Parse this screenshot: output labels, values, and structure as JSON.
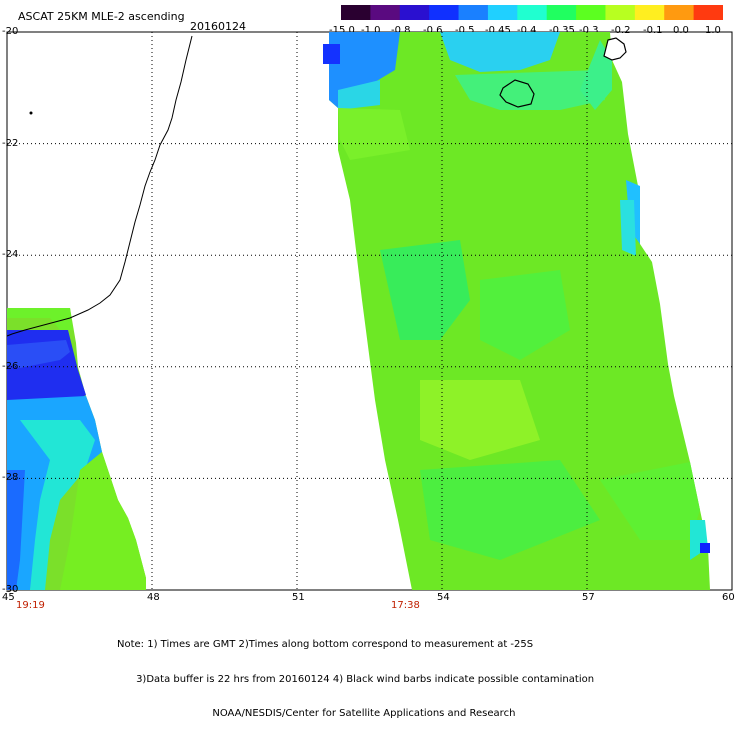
{
  "header": {
    "title": "ASCAT 25KM MLE-2 ascending",
    "date": "20160124"
  },
  "colorbar": {
    "labels": [
      "-15.0",
      "-1.0",
      "-0.8",
      "-0.6",
      "-0.5",
      "-0.45",
      "-0.4",
      "-0.35",
      "-0.3",
      "-0.2",
      "-0.1",
      "0.0",
      "1.0"
    ],
    "colors": [
      "#2a0030",
      "#5a0a80",
      "#2a10d0",
      "#1030ff",
      "#1a80ff",
      "#20d0ff",
      "#20ffd0",
      "#20ff60",
      "#5cff20",
      "#b8ff20",
      "#ffee20",
      "#ff9a10",
      "#ff3a10"
    ]
  },
  "axes": {
    "lat_labels": [
      "-20",
      "-22",
      "-24",
      "-26",
      "-28",
      "-30"
    ],
    "lon_labels": [
      "45",
      "48",
      "51",
      "54",
      "57",
      "60"
    ]
  },
  "times": {
    "left": "19:19",
    "right": "17:38"
  },
  "notes": {
    "line1": "Note: 1) Times are GMT 2)Times along bottom correspond to measurement at -25S",
    "line2": "      3)Data buffer is 22 hrs from 20160124 4) Black wind barbs indicate possible contamination",
    "line3": "                              NOAA/NESDIS/Center for Satellite Applications and Research"
  }
}
